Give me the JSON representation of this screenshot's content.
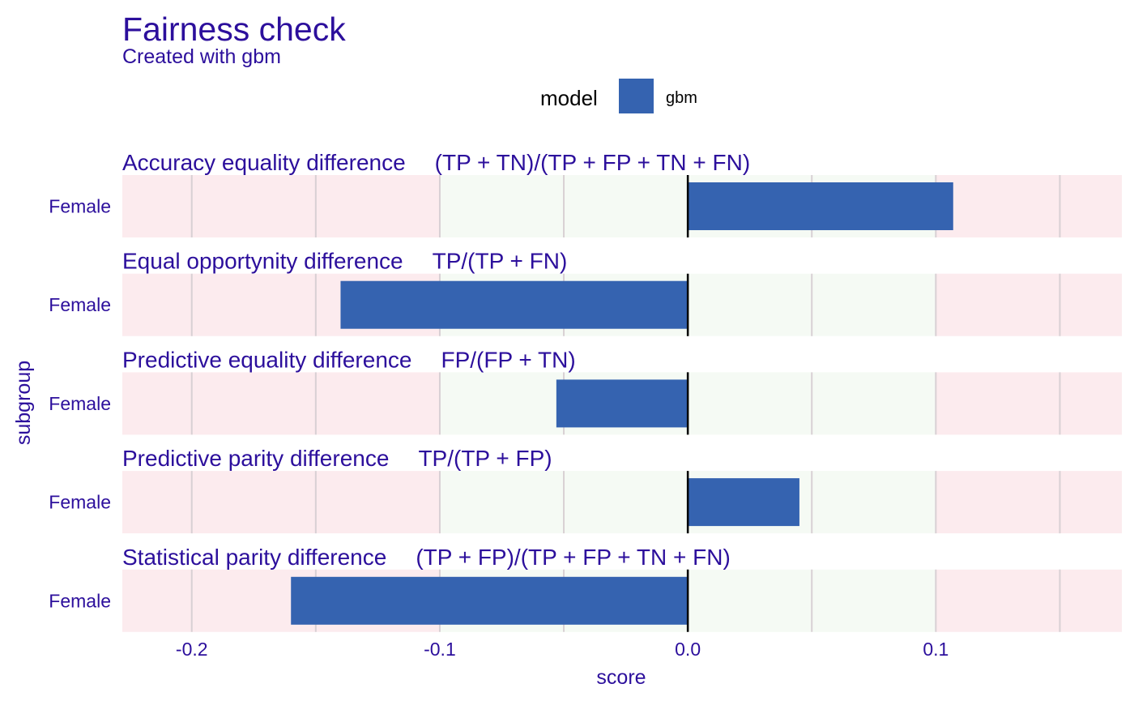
{
  "chart_data": {
    "type": "bar",
    "orientation": "horizontal",
    "title": "Fairness check",
    "subtitle": "Created with gbm",
    "xlabel": "score",
    "ylabel": "subgroup",
    "xlim": [
      -0.228,
      0.175
    ],
    "xticks": [
      -0.2,
      -0.1,
      0.0,
      0.1
    ],
    "xtick_labels": [
      "-0.2",
      "-0.1",
      "0.0",
      "0.1"
    ],
    "grid": true,
    "legend": {
      "title": "model",
      "position": "top-center",
      "items": [
        {
          "label": "gbm",
          "color": "#3563b0"
        }
      ]
    },
    "fair_range": [
      -0.1,
      0.1
    ],
    "colors": {
      "bar": "#3563b0",
      "fair_zone": "#f5faf4",
      "unfair_zone": "#fcebee",
      "text": "#2c0f9c",
      "gridline": "#d8d0d4",
      "zero_line": "#000000"
    },
    "panels": [
      {
        "metric": "Accuracy equality difference",
        "formula": "(TP + TN)/(TP + FP + TN + FN)",
        "subgroup": "Female",
        "value": 0.107
      },
      {
        "metric": "Equal opportynity difference",
        "formula": "TP/(TP + FN)",
        "subgroup": "Female",
        "value": -0.14
      },
      {
        "metric": "Predictive equality difference",
        "formula": "FP/(FP + TN)",
        "subgroup": "Female",
        "value": -0.053
      },
      {
        "metric": "Predictive parity difference",
        "formula": "TP/(TP + FP)",
        "subgroup": "Female",
        "value": 0.045
      },
      {
        "metric": "Statistical parity difference",
        "formula": "(TP + FP)/(TP + FP + TN + FN)",
        "subgroup": "Female",
        "value": -0.16
      }
    ]
  }
}
